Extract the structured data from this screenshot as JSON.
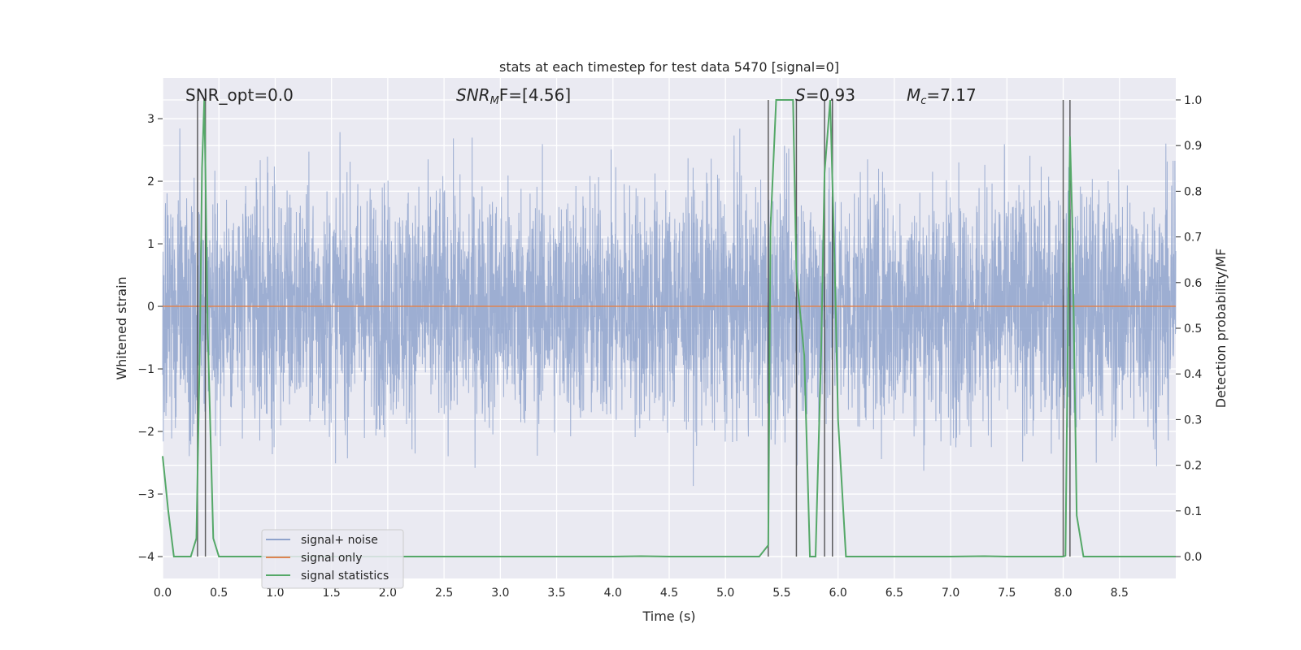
{
  "chart_data": {
    "type": "line",
    "title": "stats at each timestep for test data 5470 [signal=0]",
    "xlabel": "Time (s)",
    "ylabel": "Whitened strain",
    "ylabel_right": "Detection probability/MF",
    "xlim": [
      0.0,
      9.0
    ],
    "ylim_left": [
      -4.35,
      3.65
    ],
    "ylim_right": [
      -0.048,
      1.048
    ],
    "x_ticks": [
      "0.0",
      "0.5",
      "1.0",
      "1.5",
      "2.0",
      "2.5",
      "3.0",
      "3.5",
      "4.0",
      "4.5",
      "5.0",
      "5.5",
      "6.0",
      "6.5",
      "7.0",
      "7.5",
      "8.0",
      "8.5"
    ],
    "y_ticks_left": [
      "3",
      "2",
      "1",
      "0",
      "−1",
      "−2",
      "−3",
      "−4"
    ],
    "y_ticks_right": [
      "1.0",
      "0.9",
      "0.8",
      "0.7",
      "0.6",
      "0.5",
      "0.4",
      "0.3",
      "0.2",
      "0.1",
      "0.0"
    ],
    "grid": true,
    "legend_position": "bottom-left",
    "legend": [
      {
        "label": "signal+ noise",
        "color": "#8fa3cc"
      },
      {
        "label": "signal only",
        "color": "#dd8452"
      },
      {
        "label": "signal statistics",
        "color": "#55a868"
      }
    ],
    "annotations": {
      "snr_opt": "SNR_opt=0.0",
      "snr_mf_base": "SNR",
      "snr_mf_sub": "M",
      "snr_mf_tail": "F=[4.56]",
      "s_sym": "S",
      "s_val": "=0.93",
      "mc_sym": "M",
      "mc_sub": "c",
      "mc_val": "=7.17"
    },
    "series": [
      {
        "name": "signal statistics",
        "axis": "right",
        "color": "#55a868",
        "x": [
          0.0,
          0.05,
          0.1,
          0.15,
          0.25,
          0.3,
          0.33,
          0.35,
          0.37,
          0.38,
          0.4,
          0.45,
          0.5,
          0.55,
          1.0,
          2.0,
          3.0,
          4.0,
          4.25,
          4.5,
          5.0,
          5.3,
          5.38,
          5.4,
          5.45,
          5.5,
          5.6,
          5.63,
          5.7,
          5.75,
          5.8,
          5.85,
          5.88,
          5.93,
          5.97,
          6.0,
          6.07,
          6.5,
          7.0,
          7.3,
          7.5,
          8.0,
          8.02,
          8.04,
          8.06,
          8.08,
          8.12,
          8.18,
          8.25,
          8.5,
          9.0
        ],
        "y": [
          0.22,
          0.1,
          0.0,
          0.0,
          0.0,
          0.04,
          0.45,
          0.85,
          1.0,
          0.85,
          0.5,
          0.04,
          0.0,
          0.0,
          0.0,
          0.0,
          0.0,
          0.0,
          0.001,
          0.0,
          0.0,
          0.0,
          0.025,
          0.72,
          1.0,
          1.0,
          1.0,
          0.62,
          0.44,
          0.0,
          0.0,
          0.45,
          0.84,
          1.0,
          0.64,
          0.3,
          0.0,
          0.0,
          0.0,
          0.001,
          0.0,
          0.0,
          0.002,
          0.45,
          0.92,
          0.74,
          0.09,
          0.0,
          0.0,
          0.0,
          0.0
        ]
      },
      {
        "name": "signal only",
        "axis": "left",
        "color": "#dd8452",
        "x": [
          0.0,
          9.0
        ],
        "y": [
          0.0,
          0.0
        ]
      }
    ],
    "noise": {
      "axis": "left",
      "color": "#8fa3cc",
      "samples": 4600,
      "approx_range": [
        -3.95,
        3.15
      ]
    },
    "trigger_lines_s": [
      0.31,
      0.38,
      5.38,
      5.63,
      5.88,
      5.95,
      8.0,
      8.06
    ]
  }
}
